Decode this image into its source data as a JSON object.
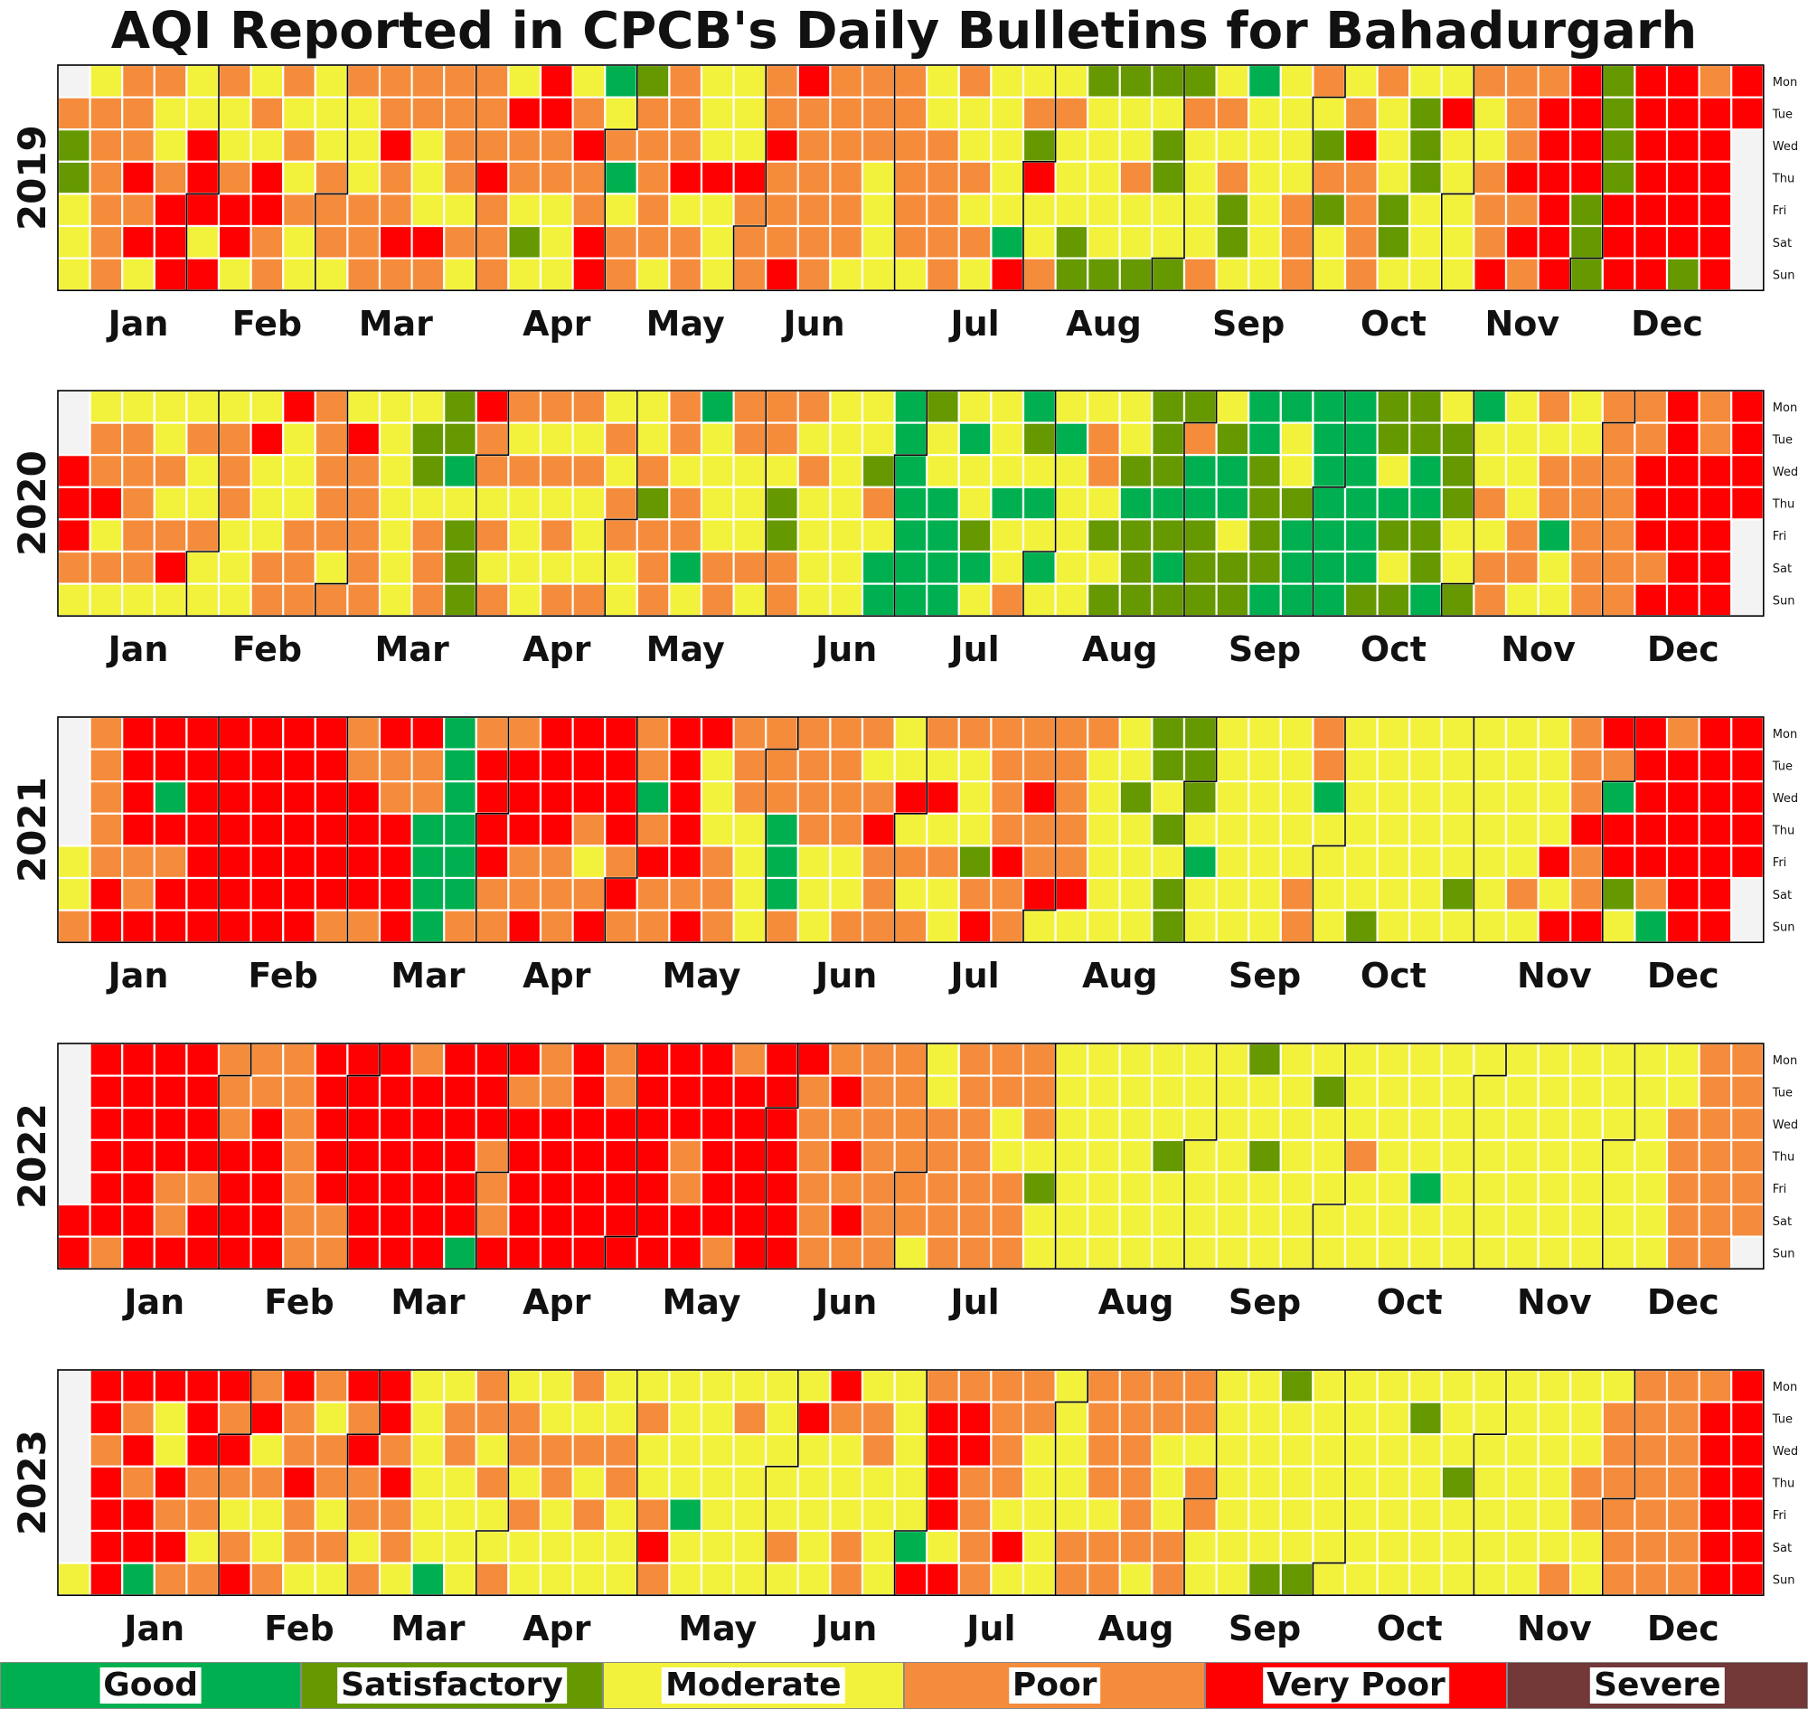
{
  "chart_data": {
    "type": "heatmap",
    "title": "AQI Reported in CPCB's Daily Bulletins for Bahadurgarh",
    "years": [
      "2019",
      "2020",
      "2021",
      "2022",
      "2023"
    ],
    "months": [
      "Jan",
      "Feb",
      "Mar",
      "Apr",
      "May",
      "Jun",
      "Jul",
      "Aug",
      "Sep",
      "Oct",
      "Nov",
      "Dec"
    ],
    "weekdays": [
      "Mon",
      "Tue",
      "Wed",
      "Thu",
      "Fri",
      "Sat",
      "Sun"
    ],
    "categories": [
      {
        "name": "Good",
        "color": "#00b050"
      },
      {
        "name": "Satisfactory",
        "color": "#669900"
      },
      {
        "name": "Moderate",
        "color": "#f2f23c"
      },
      {
        "name": "Poor",
        "color": "#f58c3c"
      },
      {
        "name": "Very Poor",
        "color": "#ff0000"
      },
      {
        "name": "Severe",
        "color": "#733838"
      }
    ],
    "legend_position": "bottom",
    "grid": true,
    "daily_category": {
      "2019": "PSSMMMMPPPPPPPPPVPVMPMMPVVVMMVVVMVPMMPVVMMPMVVPPPMPMPMMMMMPPPMPMMMPPPPPVPPVPPPMMMVPPPPPMPMPPPVPPPMVPPMSMVVPPMMMMPVPPVVGMPGMPPSPPPPPMPPPVMPPMMMVMMMMMMVPPPPPVPPPVVPPPPPPPPPPPPMPPPMMMMPPPPPPMMMPPPPPPMMPMPMMMMMMGVMPSVMMPMPMMMSSSMMMMMSSMMPMMSSMSSMMSSPMMMMPMPMPSSMGMMMMMMMMMMPPPPMSPSMMMPVPPPPPMMMSSMMSSSMMMMVMMMMMPMMPPPVPPPVPVPPVVVVVVVVVVSSSSSSSVVVVVVVVVVVVVVVVSPVVVVVVVVMVVVSSMMVVSSMPSMSMMVPVVPVVV",
      "2020": "VVVPMMPPVMPMMPPPPPMMMPMPVMMPMMPMMMPPPMMMMVMMMPPVMMMPPPPPPPPMPMVPPPPPMMMMMMMMSSMPPPSSGMSSSVPPMPMPPMPMMMMPMPMPMPPMPMMMPMPMPPMMMMPSPPPPPMPPGMGMMMMPPPPMMMPMPPMSSPPPMPMMMMMMMMMMMMMSPMGGGGGGGGGSMMGGGGMGMMSGMMMMGMMPGSMGMGMMGMMMMMMPPMSMSMMSGSSSSSSGSGSSPGGSSSMSGGMSSGGSSSSGGMMSGGGGGGGGGGGGGGGGSSSMGSMSSSGGSSGMSSSMMSGMMPMPPMMMMPPMPMPPGMMMMPPPPPPPPPPPPPPVVVPVVVVVVVVPPVVVVVVVVVVVVVVVVVVVVVVVVGVVVVVVVSVVVVVVVVVVVVVVVVVVVVVVVGVVVVVVVVVVVV",
      "2021": "MMPPPPPPVVVVVVPPVVVGVPVVVVVVVVVVVVVVVVVVVVVVVVVVVVVVVVVVVVPPPVVVVPVPPVVVVVPPGGGGGGGGGGPPVVVVPPPVVVPPVVVVVPPPVVVPMPVVVVVPVPPPGPVPPVVVVVPVVMMMPPPPPPMMMMPPPGGGPPPPPMMMPPPPMMPPMPVPPPMMVMPMPPMVMPMMPMMMSPVPPPPVPPPPVPPVMPPPPPVMPMMMMMMMMSMMMMSSMSMSSSSSMGMMMMMMMMMMMMMMMMMMMMMPPPPGMMMMMMMMMMSMMMMMMMMMMMMMMMMMMMSMMMMMMMMMMMMMPMMMMMVMVPPPVPPVVPGVVSMVVVVVPGPVVVVVVVVVVVVVVVVVVVVVVVVVVVVVVVVVVVVVVVVVVVVVVVVVVVVVVVVVVVVVVVVVVVVVVVVPV",
      "2022": "VVVVVVVVPVVVVVVVVVVVPPVVVVVPVVPPPVVVVPPVVVVVPPPPPPPVVVVVPPVVVVVVVVVVVVVVPVVVVVVVVVVVVGVVVPPPVVPVVVVVPPVVVVVVVVVVVVPPVVVVVVVVVVVVVVVPPVVVVVVVVPPVVVVVVVVVVVVVVPPPPPPPVPVPVPPPPPPPPPPPPPPMMMPPPPPPPPPPPPPPMMPPPPPPMSMMMMMMMMMMMMMMMMMMMMMMMMMMSMMMMMMMMMMMMMMMMMSMMSMMMMMMMMMMMSMMMMMMMMPMMMMMMMMMMMMMMGMMMMMMMMMMMMMMMMMMMMMMMMMMMMMMMMMMMMMMMMMMMMMMMMMMMMMPPPPPPPPPPPPPPPPPPPVVVVVVVVVVVVVVVVVVVVVVVVVVVVVVVVVVVVVVVVVVVVVVVVVVVVVVVVVVVVVVVVVVVVVVVV",
      "2023": "MVVPVVVVVPVPVVGVMMVPVPVVVPPMPVPVPMPVPVMPMMPVPPVPPMPMPPMPMVPVPPMPVVPVPPMMMMMMMGMPPMMMMPPMPMMPMPPMPMMMMPPMMMPMPMPMMMMPPMMMMPMMPVPMMMMGMMMMMMMMMMPMMMMMMMMMMPMMVMMMMMVPMMMPPMPPMMMMMMMMMGVPVVVVMVPVVPPPPPPPPMVMPPMMMMMMMMMMPPPPPPMPPPPPPPPMPPMMMPPPPMPPMMMMMMMMMMMMMMMSSMMMMMSMMMMMMMMMMMMMMMMMMMMMMSMMMMMMMMSMMMMMMMMMMMMMMMMMMMMMMMPMMMPPMMMPPPPPPPPPPPPPPPPPPPPPVVVVVVVVVVVVVVVVVVVVVVVVVVVVVVVVVVVVVVVVVVVVVVVVVVVVVVVVVVVVVVVVVVVVVVVVVVVV"
    }
  }
}
